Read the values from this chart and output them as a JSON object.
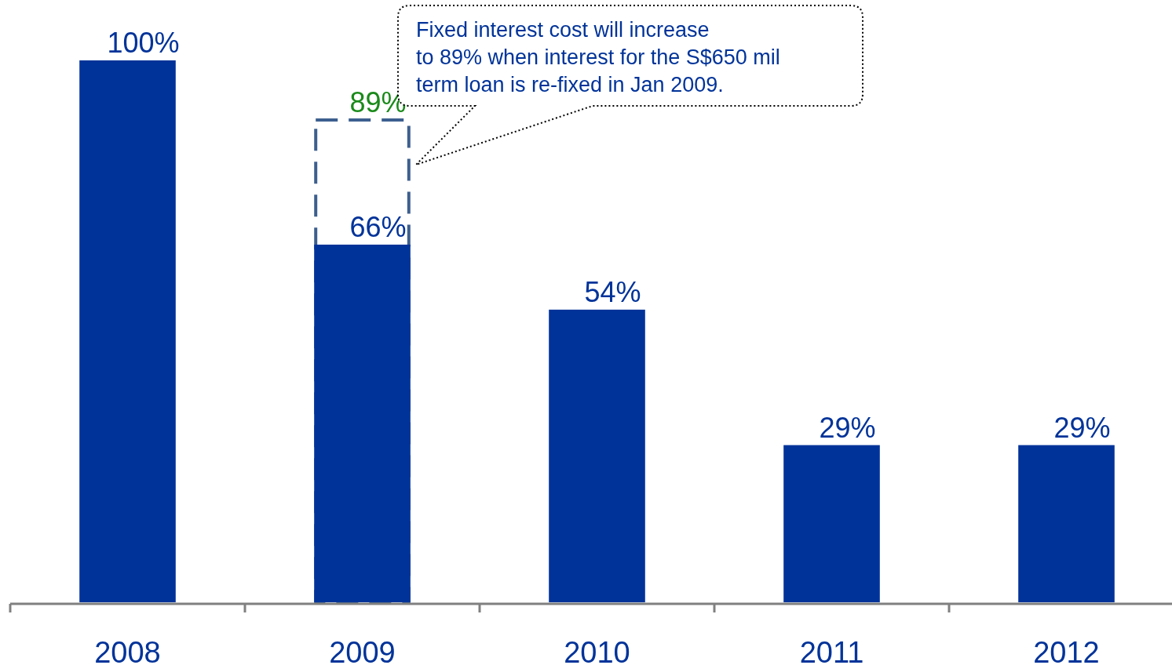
{
  "chart_data": {
    "type": "bar",
    "categories": [
      "2008",
      "2009",
      "2010",
      "2011",
      "2012"
    ],
    "series": [
      {
        "color": "#3d5f8f",
        "line_style": "dashed",
        "values": [
          null,
          89,
          null,
          null,
          null
        ],
        "value_labels": [
          null,
          "89%",
          null,
          null,
          null
        ]
      },
      {
        "color": "#003399",
        "values": [
          100,
          66,
          54,
          29,
          29
        ],
        "value_labels": [
          "100%",
          "66%",
          "54%",
          "29%",
          "29%"
        ]
      }
    ],
    "annotations": [
      "Fixed interest cost will increase\nto 89% when interest for the S$650 mil\nterm loan is re-fixed in Jan 2009."
    ]
  }
}
